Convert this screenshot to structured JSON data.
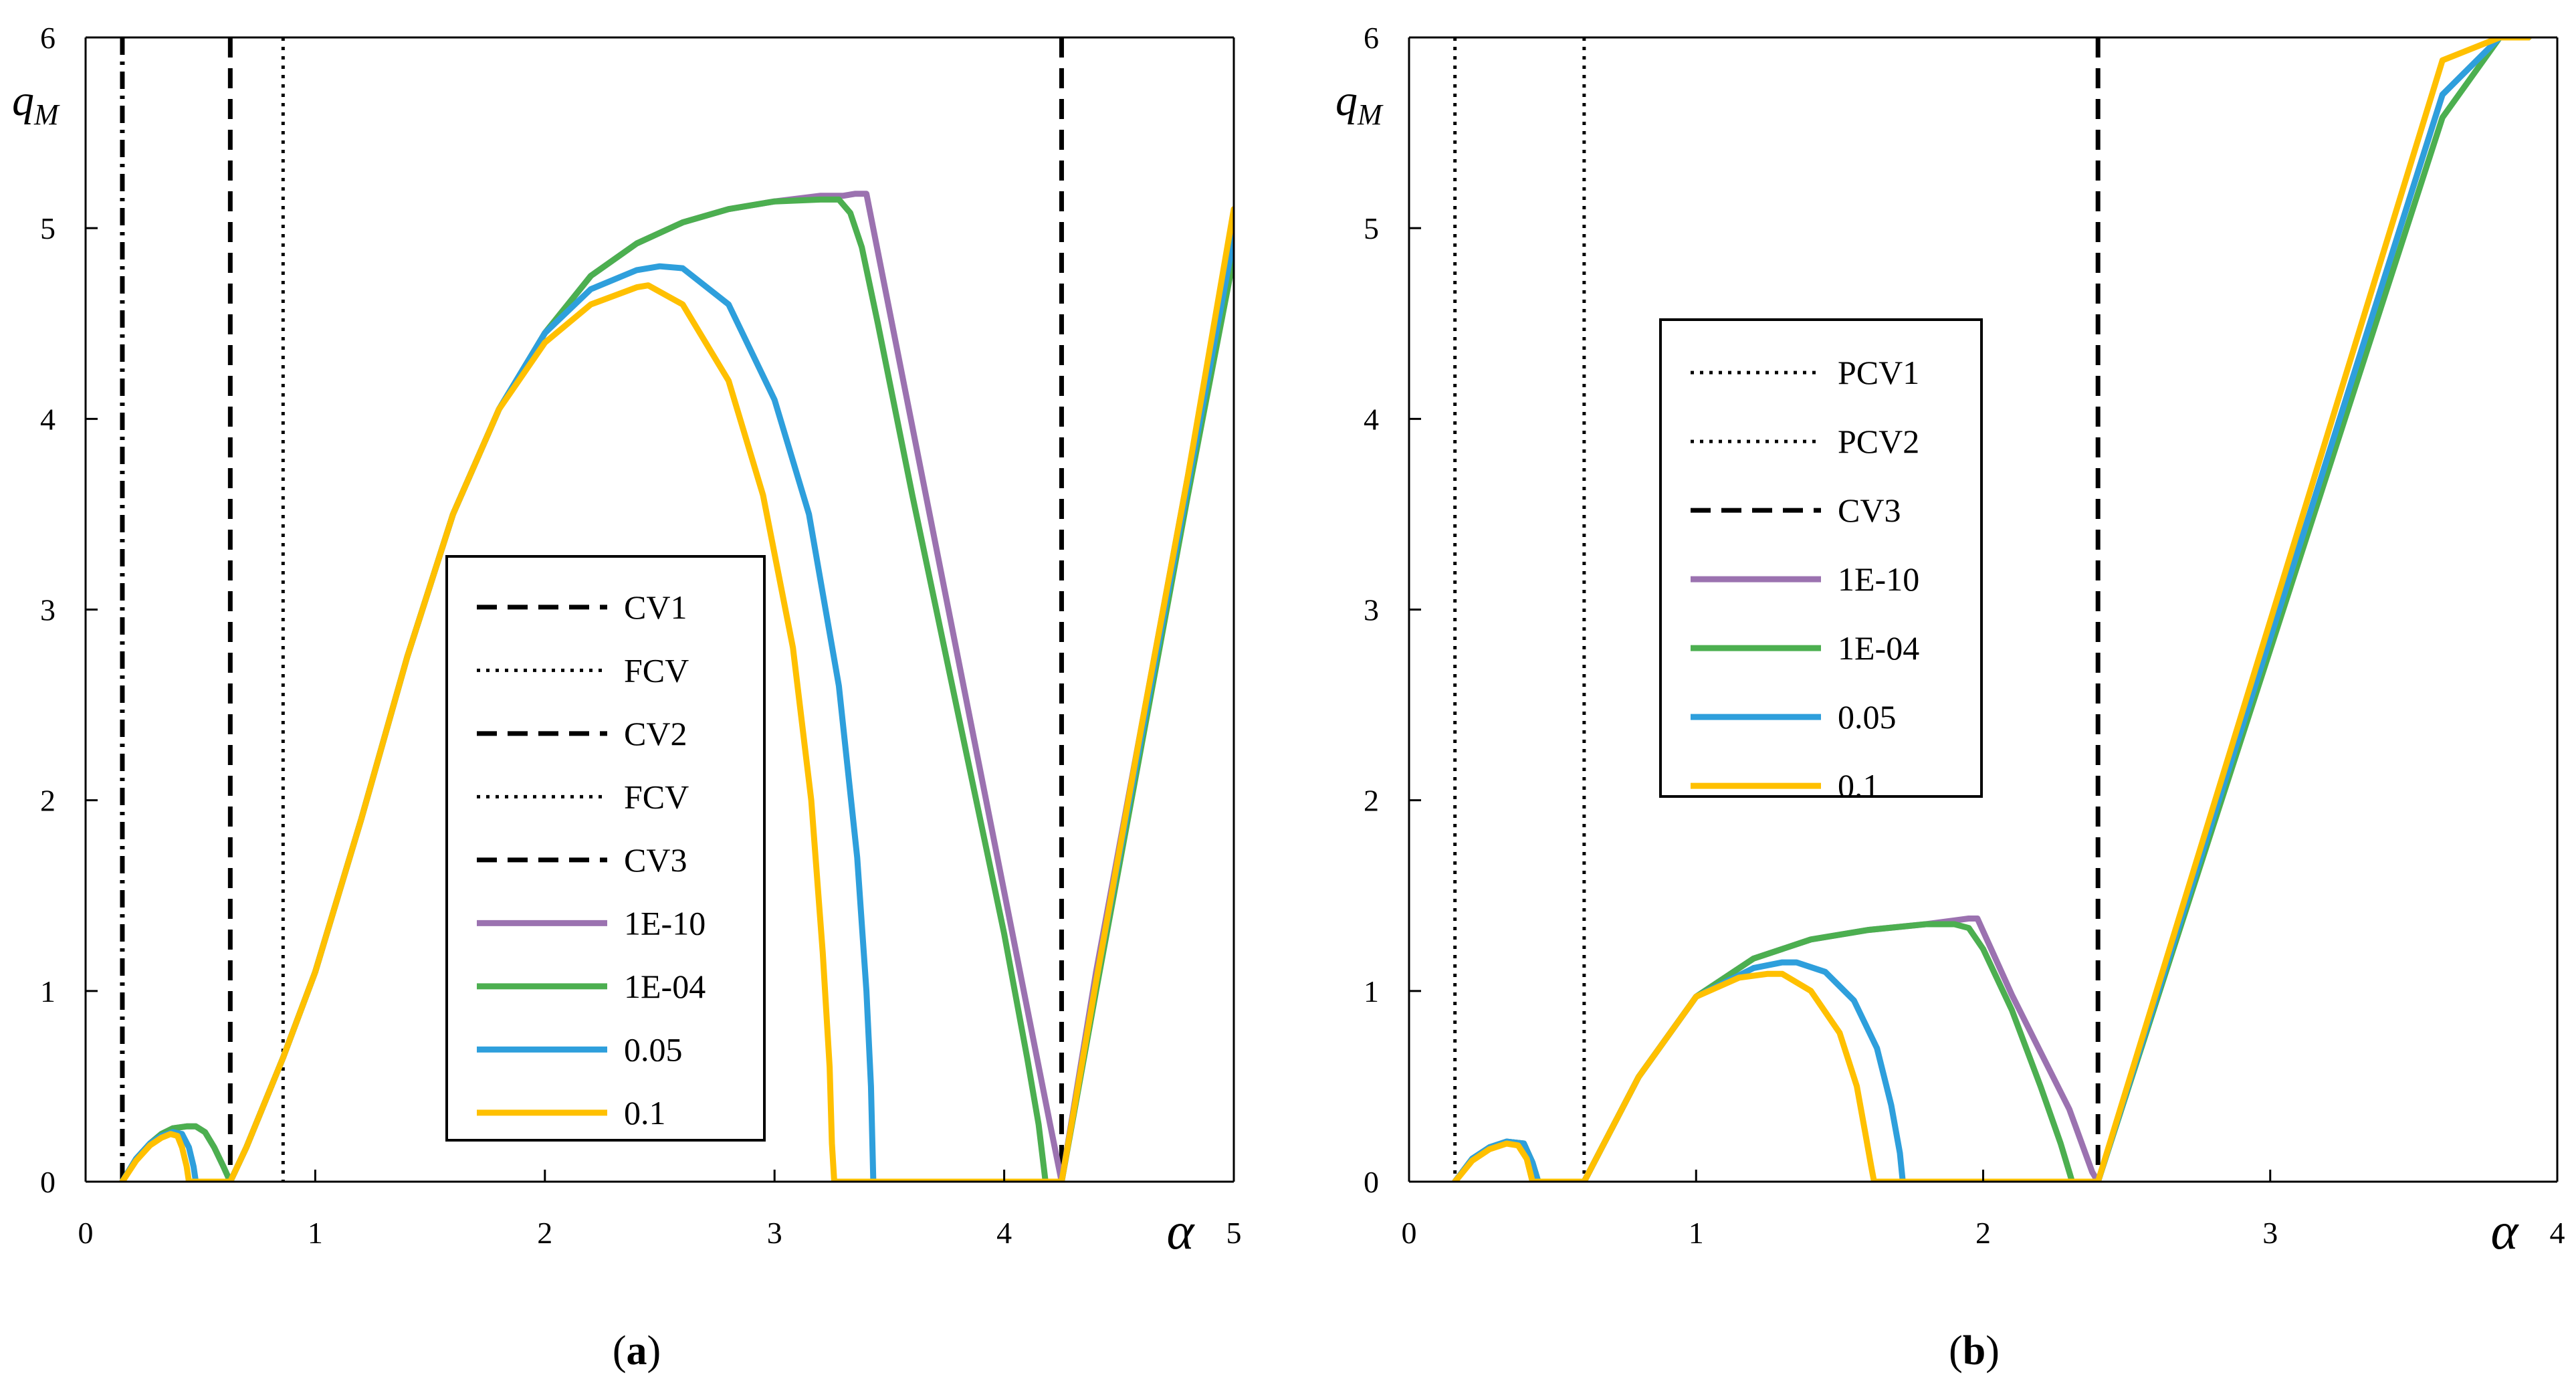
{
  "chart_data": [
    {
      "panel": "a",
      "type": "line",
      "caption_letter": "a",
      "xlim": [
        0,
        5
      ],
      "ylim": [
        0,
        6
      ],
      "x_ticks": [
        "0",
        "1",
        "2",
        "3",
        "4",
        "5"
      ],
      "y_ticks": [
        "0",
        "1",
        "2",
        "3",
        "4",
        "5",
        "6"
      ],
      "x_symbol": "α",
      "y_symbol": "q",
      "y_symbol_sub": "M",
      "vlines": [
        {
          "x": 0.16,
          "style": "dashdot"
        },
        {
          "x": 0.63,
          "style": "dashed"
        },
        {
          "x": 0.86,
          "style": "dotted"
        },
        {
          "x": 4.25,
          "style": "dashed"
        }
      ],
      "series": [
        {
          "name": "1E-10",
          "color": "#9B72B0",
          "x": [
            0.16,
            0.22,
            0.28,
            0.33,
            0.38,
            0.44,
            0.48,
            0.52,
            0.56,
            0.6,
            0.63,
            0.7,
            0.86,
            1.0,
            1.2,
            1.4,
            1.6,
            1.8,
            2.0,
            2.2,
            2.4,
            2.6,
            2.8,
            3.0,
            3.2,
            3.3,
            3.35,
            3.4,
            3.6,
            3.8,
            4.0,
            4.2,
            4.25,
            4.4,
            4.6,
            4.8,
            5.0
          ],
          "values": [
            0.0,
            0.12,
            0.2,
            0.25,
            0.28,
            0.29,
            0.29,
            0.26,
            0.18,
            0.08,
            0.0,
            0.18,
            0.65,
            1.1,
            1.9,
            2.75,
            3.5,
            4.05,
            4.45,
            4.75,
            4.92,
            5.03,
            5.1,
            5.14,
            5.17,
            5.17,
            5.18,
            5.18,
            3.96,
            2.74,
            1.52,
            0.3,
            0.0,
            1.1,
            2.4,
            3.7,
            5.05
          ]
        },
        {
          "name": "1E-04",
          "color": "#4CAF50",
          "x": [
            0.16,
            0.22,
            0.28,
            0.33,
            0.38,
            0.44,
            0.48,
            0.52,
            0.56,
            0.6,
            0.63,
            0.7,
            0.86,
            1.0,
            1.2,
            1.4,
            1.6,
            1.8,
            2.0,
            2.2,
            2.4,
            2.6,
            2.8,
            3.0,
            3.2,
            3.28,
            3.33,
            3.38,
            3.45,
            3.6,
            3.8,
            4.0,
            4.1,
            4.15,
            4.17,
            4.18,
            4.25,
            4.4,
            4.6,
            4.8,
            5.0
          ],
          "values": [
            0.0,
            0.12,
            0.2,
            0.25,
            0.28,
            0.29,
            0.29,
            0.26,
            0.18,
            0.08,
            0.0,
            0.18,
            0.65,
            1.1,
            1.9,
            2.75,
            3.5,
            4.05,
            4.45,
            4.75,
            4.92,
            5.03,
            5.1,
            5.14,
            5.15,
            5.15,
            5.08,
            4.9,
            4.5,
            3.6,
            2.45,
            1.3,
            0.65,
            0.3,
            0.1,
            0.0,
            0.0,
            1.0,
            2.3,
            3.6,
            4.85
          ]
        },
        {
          "name": "0.05",
          "color": "#2E9FDC",
          "x": [
            0.16,
            0.22,
            0.28,
            0.33,
            0.38,
            0.42,
            0.45,
            0.47,
            0.48,
            0.63,
            0.7,
            0.86,
            1.0,
            1.2,
            1.4,
            1.6,
            1.8,
            2.0,
            2.2,
            2.4,
            2.5,
            2.6,
            2.8,
            3.0,
            3.15,
            3.28,
            3.36,
            3.4,
            3.42,
            3.43,
            4.25,
            4.4,
            4.6,
            4.8,
            5.0
          ],
          "values": [
            0.0,
            0.12,
            0.2,
            0.24,
            0.26,
            0.25,
            0.18,
            0.08,
            0.0,
            0.0,
            0.18,
            0.65,
            1.1,
            1.9,
            2.75,
            3.5,
            4.05,
            4.45,
            4.68,
            4.78,
            4.8,
            4.79,
            4.6,
            4.1,
            3.5,
            2.6,
            1.7,
            1.0,
            0.5,
            0.0,
            0.0,
            1.05,
            2.35,
            3.65,
            4.95
          ]
        },
        {
          "name": "0.1",
          "color": "#FFC000",
          "x": [
            0.16,
            0.22,
            0.28,
            0.33,
            0.37,
            0.4,
            0.42,
            0.44,
            0.45,
            0.63,
            0.7,
            0.86,
            1.0,
            1.2,
            1.4,
            1.6,
            1.8,
            2.0,
            2.2,
            2.4,
            2.45,
            2.6,
            2.8,
            2.95,
            3.08,
            3.16,
            3.21,
            3.24,
            3.25,
            3.26,
            4.25,
            4.4,
            4.6,
            4.8,
            5.0
          ],
          "values": [
            0.0,
            0.11,
            0.19,
            0.23,
            0.25,
            0.24,
            0.18,
            0.08,
            0.0,
            0.0,
            0.18,
            0.65,
            1.1,
            1.9,
            2.75,
            3.5,
            4.05,
            4.4,
            4.6,
            4.69,
            4.7,
            4.6,
            4.2,
            3.6,
            2.8,
            2.0,
            1.2,
            0.6,
            0.2,
            0.0,
            0.0,
            1.05,
            2.4,
            3.7,
            5.1
          ]
        }
      ],
      "legend": [
        {
          "label": "CV1",
          "style": "dashed"
        },
        {
          "label": "FCV",
          "style": "dotted"
        },
        {
          "label": "CV2",
          "style": "dashed"
        },
        {
          "label": "FCV",
          "style": "dotted"
        },
        {
          "label": "CV3",
          "style": "dashed"
        },
        {
          "label": "1E-10",
          "style": "solid",
          "color": "#9B72B0"
        },
        {
          "label": "1E-04",
          "style": "solid",
          "color": "#4CAF50"
        },
        {
          "label": "0.05",
          "style": "solid",
          "color": "#2E9FDC"
        },
        {
          "label": "0.1",
          "style": "solid",
          "color": "#FFC000"
        }
      ]
    },
    {
      "panel": "b",
      "type": "line",
      "caption_letter": "b",
      "xlim": [
        0,
        4
      ],
      "ylim": [
        0,
        6
      ],
      "x_ticks": [
        "0",
        "1",
        "2",
        "3",
        "4"
      ],
      "y_ticks": [
        "0",
        "1",
        "2",
        "3",
        "4",
        "5",
        "6"
      ],
      "x_symbol": "α",
      "y_symbol": "q",
      "y_symbol_sub": "M",
      "vlines": [
        {
          "x": 0.16,
          "style": "dotted"
        },
        {
          "x": 0.61,
          "style": "dotted"
        },
        {
          "x": 2.4,
          "style": "dashed"
        }
      ],
      "series": [
        {
          "name": "1E-10",
          "color": "#9B72B0",
          "x": [
            0.16,
            0.22,
            0.28,
            0.34,
            0.4,
            0.43,
            0.45,
            0.61,
            0.8,
            1.0,
            1.2,
            1.4,
            1.6,
            1.8,
            1.9,
            1.95,
            1.98,
            2.1,
            2.2,
            2.3,
            2.38,
            2.4,
            2.6,
            2.8,
            3.0,
            3.2,
            3.4,
            3.6,
            3.8,
            3.9
          ],
          "values": [
            0.0,
            0.12,
            0.18,
            0.21,
            0.2,
            0.1,
            0.0,
            0.0,
            0.55,
            0.97,
            1.17,
            1.27,
            1.32,
            1.35,
            1.37,
            1.38,
            1.38,
            0.98,
            0.68,
            0.38,
            0.05,
            0.0,
            0.95,
            1.9,
            2.85,
            3.8,
            4.75,
            5.7,
            6.0,
            6.0
          ]
        },
        {
          "name": "1E-04",
          "color": "#4CAF50",
          "x": [
            0.16,
            0.22,
            0.28,
            0.34,
            0.4,
            0.43,
            0.45,
            0.61,
            0.8,
            1.0,
            1.2,
            1.4,
            1.6,
            1.8,
            1.9,
            1.95,
            2.0,
            2.1,
            2.2,
            2.27,
            2.3,
            2.31,
            2.4,
            2.6,
            2.8,
            3.0,
            3.2,
            3.4,
            3.6,
            3.8,
            3.9
          ],
          "values": [
            0.0,
            0.12,
            0.18,
            0.21,
            0.2,
            0.1,
            0.0,
            0.0,
            0.55,
            0.97,
            1.17,
            1.27,
            1.32,
            1.35,
            1.35,
            1.33,
            1.22,
            0.9,
            0.5,
            0.2,
            0.05,
            0.0,
            0.0,
            0.93,
            1.86,
            2.79,
            3.72,
            4.65,
            5.58,
            6.0,
            6.0
          ]
        },
        {
          "name": "0.05",
          "color": "#2E9FDC",
          "x": [
            0.16,
            0.22,
            0.28,
            0.34,
            0.4,
            0.43,
            0.45,
            0.61,
            0.8,
            1.0,
            1.2,
            1.3,
            1.35,
            1.45,
            1.55,
            1.63,
            1.68,
            1.71,
            1.72,
            2.4,
            2.6,
            2.8,
            3.0,
            3.2,
            3.4,
            3.6,
            3.8,
            3.9
          ],
          "values": [
            0.0,
            0.12,
            0.18,
            0.21,
            0.2,
            0.1,
            0.0,
            0.0,
            0.55,
            0.97,
            1.12,
            1.15,
            1.15,
            1.1,
            0.95,
            0.7,
            0.4,
            0.15,
            0.0,
            0.0,
            0.95,
            1.9,
            2.85,
            3.8,
            4.75,
            5.7,
            6.0,
            6.0
          ]
        },
        {
          "name": "0.1",
          "color": "#FFC000",
          "x": [
            0.16,
            0.22,
            0.28,
            0.34,
            0.38,
            0.41,
            0.43,
            0.61,
            0.8,
            1.0,
            1.15,
            1.25,
            1.3,
            1.4,
            1.5,
            1.56,
            1.59,
            1.61,
            1.62,
            2.4,
            2.6,
            2.8,
            3.0,
            3.2,
            3.4,
            3.6,
            3.8,
            3.9
          ],
          "values": [
            0.0,
            0.11,
            0.17,
            0.2,
            0.19,
            0.12,
            0.0,
            0.0,
            0.55,
            0.97,
            1.07,
            1.09,
            1.09,
            1.0,
            0.78,
            0.5,
            0.25,
            0.08,
            0.0,
            0.0,
            0.98,
            1.96,
            2.94,
            3.92,
            4.9,
            5.88,
            6.0,
            6.0
          ]
        }
      ],
      "legend": [
        {
          "label": "PCV1",
          "style": "dotted"
        },
        {
          "label": "PCV2",
          "style": "dotted"
        },
        {
          "label": "CV3",
          "style": "dashed"
        },
        {
          "label": "1E-10",
          "style": "solid",
          "color": "#9B72B0"
        },
        {
          "label": "1E-04",
          "style": "solid",
          "color": "#4CAF50"
        },
        {
          "label": "0.05",
          "style": "solid",
          "color": "#2E9FDC"
        },
        {
          "label": "0.1",
          "style": "solid",
          "color": "#FFC000"
        }
      ]
    }
  ]
}
